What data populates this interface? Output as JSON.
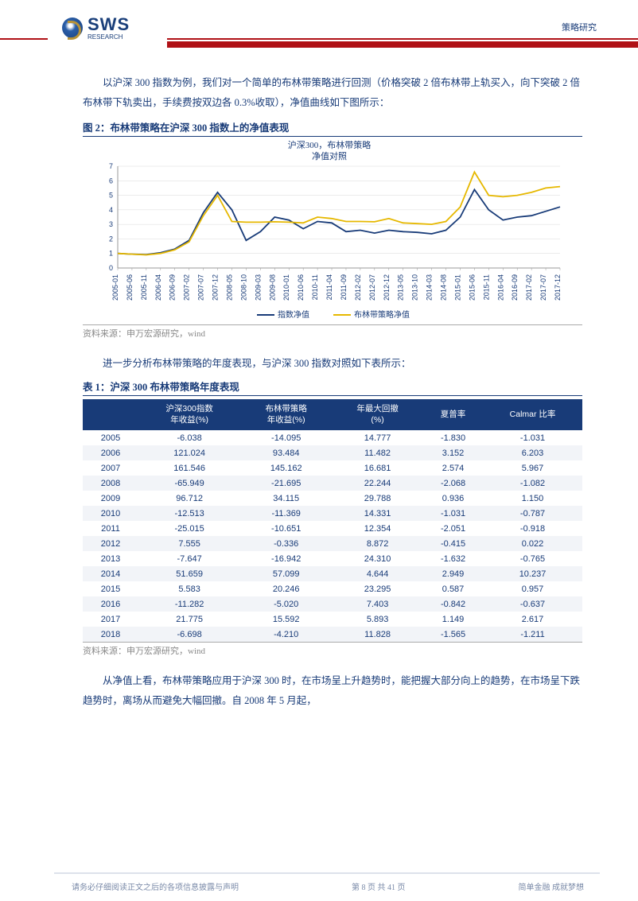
{
  "header": {
    "logo_text": "SWS",
    "logo_sub": "RESEARCH",
    "category": "策略研究"
  },
  "intro_para": "以沪深 300 指数为例，我们对一个简单的布林带策略进行回测（价格突破 2 倍布林带上轨买入，向下突破 2 倍布林带下轨卖出，手续费按双边各 0.3%收取），净值曲线如下图所示：",
  "figure": {
    "title": "图 2：布林带策略在沪深 300 指数上的净值表现",
    "chart_title_1": "沪深300，布林带策略",
    "chart_title_2": "净值对照",
    "type": "line",
    "x_labels": [
      "2005-01",
      "2005-06",
      "2005-11",
      "2006-04",
      "2006-09",
      "2007-02",
      "2007-07",
      "2007-12",
      "2008-05",
      "2008-10",
      "2009-03",
      "2009-08",
      "2010-01",
      "2010-06",
      "2010-11",
      "2011-04",
      "2011-09",
      "2012-02",
      "2012-07",
      "2012-12",
      "2013-05",
      "2013-10",
      "2014-03",
      "2014-08",
      "2015-01",
      "2015-06",
      "2015-11",
      "2016-04",
      "2016-09",
      "2017-02",
      "2017-07",
      "2017-12"
    ],
    "ylim": [
      0,
      7
    ],
    "ytick_step": 1,
    "series": [
      {
        "name": "指数净值",
        "color": "#183b78",
        "width": 1.8,
        "values": [
          1.0,
          0.95,
          0.92,
          1.05,
          1.3,
          1.9,
          3.8,
          5.2,
          4.0,
          1.9,
          2.5,
          3.5,
          3.3,
          2.7,
          3.2,
          3.1,
          2.5,
          2.6,
          2.4,
          2.6,
          2.5,
          2.45,
          2.35,
          2.6,
          3.5,
          5.4,
          4.0,
          3.3,
          3.5,
          3.6,
          3.9,
          4.2
        ]
      },
      {
        "name": "布林带策略净值",
        "color": "#e6b800",
        "width": 1.8,
        "values": [
          1.0,
          0.95,
          0.9,
          1.0,
          1.25,
          1.8,
          3.6,
          5.0,
          3.2,
          3.15,
          3.15,
          3.18,
          3.15,
          3.1,
          3.5,
          3.4,
          3.2,
          3.2,
          3.18,
          3.4,
          3.1,
          3.05,
          3.0,
          3.2,
          4.2,
          6.6,
          5.0,
          4.9,
          5.0,
          5.2,
          5.5,
          5.6
        ]
      }
    ],
    "legend_items": [
      {
        "label": "指数净值",
        "color": "#183b78"
      },
      {
        "label": "布林带策略净值",
        "color": "#e6b800"
      }
    ],
    "axis_color": "#999",
    "grid_color": "#d8d8d8",
    "tick_fontsize": 9,
    "tick_color": "#183b78",
    "source": "资料来源：申万宏源研究，wind"
  },
  "mid_para": "进一步分析布林带策略的年度表现，与沪深 300 指数对照如下表所示：",
  "table": {
    "title": "表 1：沪深 300 布林带策略年度表现",
    "header_bg": "#183b78",
    "header_color": "#ffffff",
    "row_alt_bg": "#f2f4f8",
    "text_color": "#183b78",
    "columns": [
      "",
      "沪深300指数\n年收益(%)",
      "布林带策略\n年收益(%)",
      "年最大回撤\n(%)",
      "夏普率",
      "Calmar 比率"
    ],
    "rows": [
      [
        "2005",
        "-6.038",
        "-14.095",
        "14.777",
        "-1.830",
        "-1.031"
      ],
      [
        "2006",
        "121.024",
        "93.484",
        "11.482",
        "3.152",
        "6.203"
      ],
      [
        "2007",
        "161.546",
        "145.162",
        "16.681",
        "2.574",
        "5.967"
      ],
      [
        "2008",
        "-65.949",
        "-21.695",
        "22.244",
        "-2.068",
        "-1.082"
      ],
      [
        "2009",
        "96.712",
        "34.115",
        "29.788",
        "0.936",
        "1.150"
      ],
      [
        "2010",
        "-12.513",
        "-11.369",
        "14.331",
        "-1.031",
        "-0.787"
      ],
      [
        "2011",
        "-25.015",
        "-10.651",
        "12.354",
        "-2.051",
        "-0.918"
      ],
      [
        "2012",
        "7.555",
        "-0.336",
        "8.872",
        "-0.415",
        "0.022"
      ],
      [
        "2013",
        "-7.647",
        "-16.942",
        "24.310",
        "-1.632",
        "-0.765"
      ],
      [
        "2014",
        "51.659",
        "57.099",
        "4.644",
        "2.949",
        "10.237"
      ],
      [
        "2015",
        "5.583",
        "20.246",
        "23.295",
        "0.587",
        "0.957"
      ],
      [
        "2016",
        "-11.282",
        "-5.020",
        "7.403",
        "-0.842",
        "-0.637"
      ],
      [
        "2017",
        "21.775",
        "15.592",
        "5.893",
        "1.149",
        "2.617"
      ],
      [
        "2018",
        "-6.698",
        "-4.210",
        "11.828",
        "-1.565",
        "-1.211"
      ]
    ],
    "source": "资料来源：申万宏源研究，wind"
  },
  "closing_para": "从净值上看，布林带策略应用于沪深 300 时，在市场呈上升趋势时，能把握大部分向上的趋势，在市场呈下跌趋势时，离场从而避免大幅回撤。自 2008 年 5 月起，",
  "footer": {
    "left": "请务必仔细阅读正文之后的各项信息披露与声明",
    "center": "第 8 页 共 41 页",
    "right": "简单金融 成就梦想"
  }
}
